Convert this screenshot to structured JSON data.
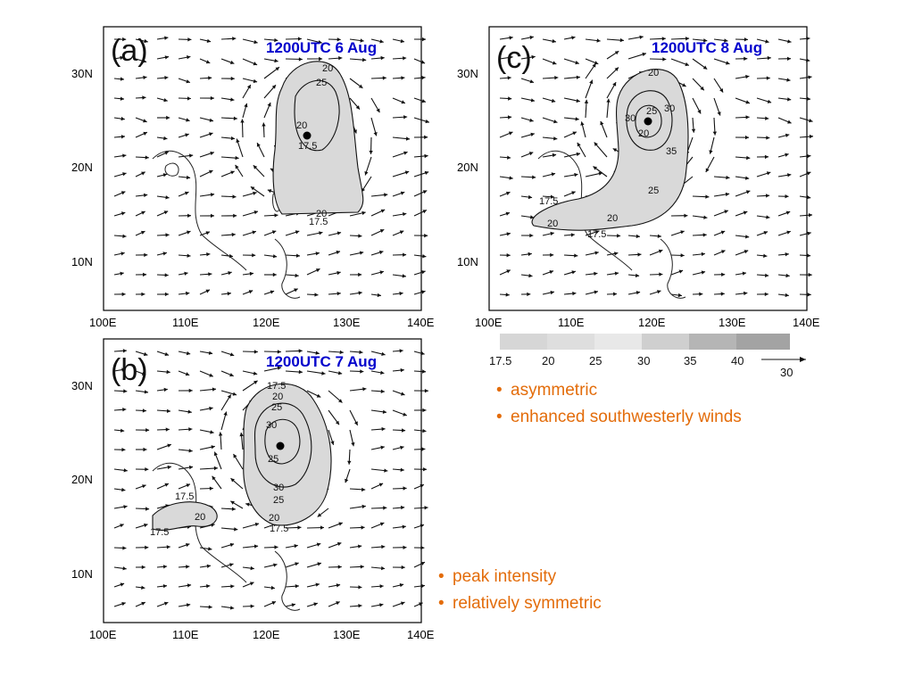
{
  "panels": [
    {
      "id": "a",
      "letter": "(a)",
      "time_label": "1200UTC 6 Aug",
      "lat_labels": [
        "30N",
        "20N",
        "10N"
      ],
      "lon_labels": [
        "100E",
        "110E",
        "120E",
        "130E",
        "140E"
      ],
      "contour_labels": [
        "20",
        "25",
        "20",
        "17.5",
        "20",
        "17.5"
      ]
    },
    {
      "id": "b",
      "letter": "(b)",
      "time_label": "1200UTC 7 Aug",
      "lat_labels": [
        "30N",
        "20N",
        "10N"
      ],
      "lon_labels": [
        "100E",
        "110E",
        "120E",
        "130E",
        "140E"
      ],
      "contour_labels": [
        "17.5",
        "20",
        "25",
        "30",
        "25",
        "30",
        "25",
        "20",
        "17.5",
        "17.5",
        "20",
        "17.5"
      ]
    },
    {
      "id": "c",
      "letter": "(c)",
      "time_label": "1200UTC 8 Aug",
      "lat_labels": [
        "30N",
        "20N",
        "10N"
      ],
      "lon_labels": [
        "100E",
        "110E",
        "120E",
        "130E",
        "140E"
      ],
      "contour_labels": [
        "20",
        "25",
        "30",
        "30",
        "20",
        "35",
        "25",
        "17.5",
        "20",
        "20",
        "17.5"
      ]
    }
  ],
  "legend": {
    "levels": [
      "17.5",
      "20",
      "25",
      "30",
      "35",
      "40"
    ],
    "colors": [
      "#d6d6d6",
      "#dedede",
      "#e8e8e8",
      "#cfcfcf",
      "#b5b5b5",
      "#a3a3a3"
    ],
    "reference_vector": "30"
  },
  "notes_c": [
    {
      "bullet": "•",
      "text": "asymmetric"
    },
    {
      "bullet": "•",
      "text": "enhanced southwesterly winds"
    }
  ],
  "notes_b": [
    {
      "bullet": "•",
      "text": "peak intensity"
    },
    {
      "bullet": "•",
      "text": "relatively symmetric"
    }
  ],
  "colors": {
    "time_label": "#0000cc",
    "notes": "#e36c0a"
  }
}
